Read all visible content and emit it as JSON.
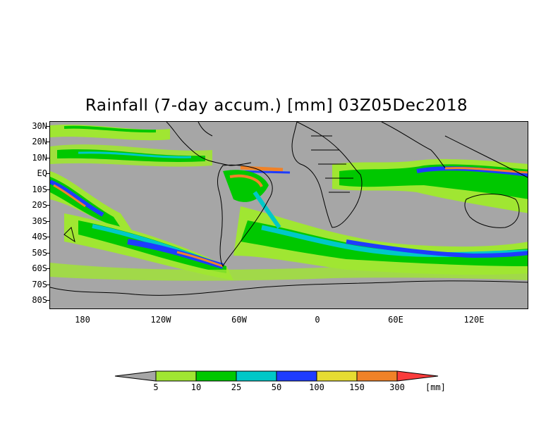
{
  "title": "Rainfall (7-day accum.) [mm] 03Z05Dec2018",
  "lat_labels": [
    "30N",
    "20N",
    "10N",
    "EQ",
    "10S",
    "20S",
    "30S",
    "40S",
    "50S",
    "60S",
    "70S",
    "80S"
  ],
  "lon_labels": [
    "180",
    "120W",
    "60W",
    "0",
    "60E",
    "120E"
  ],
  "legend": {
    "levels": [
      "5",
      "10",
      "25",
      "50",
      "100",
      "150",
      "300"
    ],
    "unit": "[mm]",
    "colors": {
      "below": "#a6a6a6",
      "5-10": "#a0e632",
      "10-25": "#00c800",
      "25-50": "#00c8c8",
      "50-100": "#1e3cff",
      "100-150": "#e6dc32",
      "150-300": "#f08228",
      "above": "#fa3c3c"
    }
  },
  "map_colors": {
    "ocean_no_rain": "#a6a6a6",
    "coastline": "#000000"
  }
}
